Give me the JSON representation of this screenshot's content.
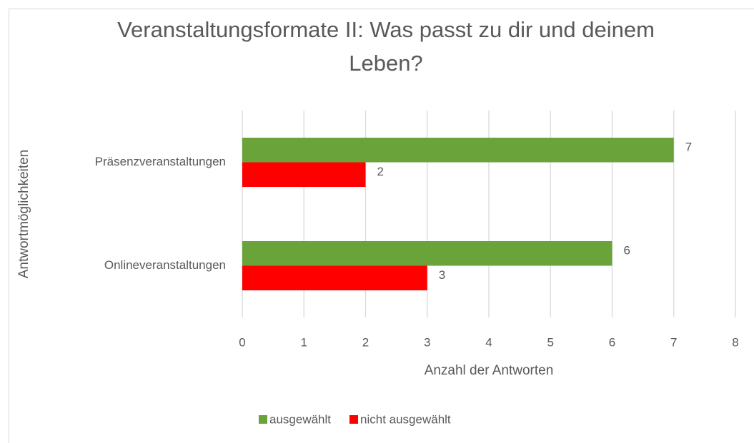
{
  "chart_data": {
    "type": "bar",
    "orientation": "horizontal",
    "title": "Veranstaltungsformate II: Was passt zu dir und deinem Leben?",
    "x_label": "Anzahl der Antworten",
    "y_label": "Antwortmöglichkeiten",
    "categories": [
      "Präsenzveranstaltungen",
      "Onlineveranstaltungen"
    ],
    "series": [
      {
        "name": "ausgewählt",
        "color": "#6aa339",
        "values": [
          7,
          6
        ]
      },
      {
        "name": "nicht ausgewählt",
        "color": "#ff0000",
        "values": [
          2,
          3
        ]
      }
    ],
    "xlim": [
      0,
      8
    ],
    "xticks": [
      0,
      1,
      2,
      3,
      4,
      5,
      6,
      7,
      8
    ],
    "grid": true,
    "legend": "bottom"
  }
}
